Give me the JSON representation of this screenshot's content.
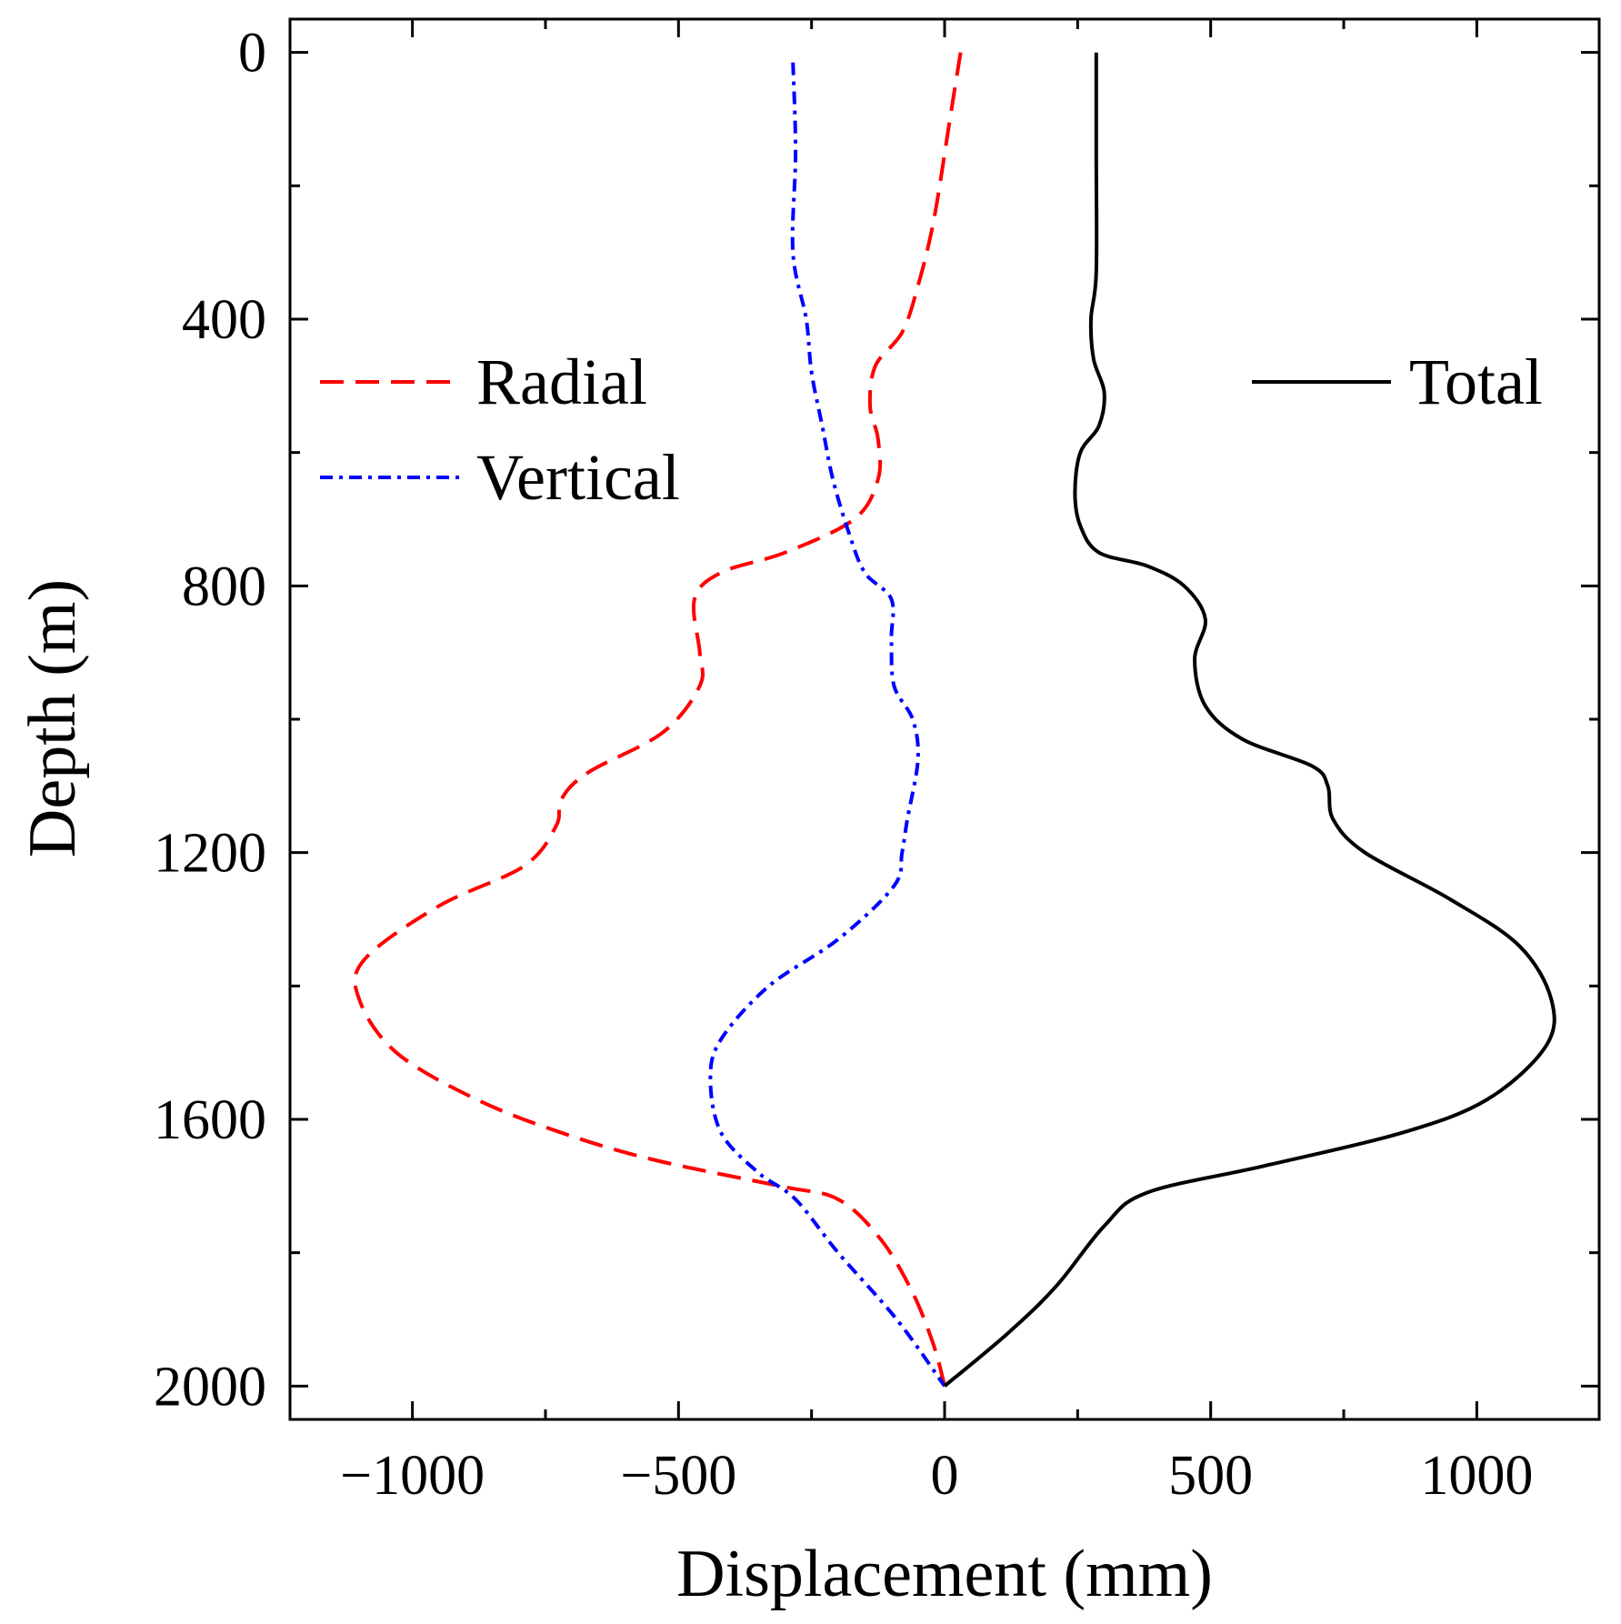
{
  "chart_data": {
    "type": "line",
    "title": "",
    "xlabel": "Displacement (mm)",
    "ylabel": "Depth (m)",
    "xlim": [
      -1230,
      1230
    ],
    "ylim": [
      2050,
      -50
    ],
    "y_inverted": true,
    "xticks": [
      -1000,
      -500,
      0,
      500,
      1000
    ],
    "xtick_labels": [
      "−1000",
      "−500",
      "0",
      "500",
      "1000"
    ],
    "yticks": [
      0,
      400,
      800,
      1200,
      1600,
      2000
    ],
    "ytick_labels": [
      "0",
      "400",
      "800",
      "1200",
      "1600",
      "2000"
    ],
    "grid": false,
    "legend": [
      {
        "name": "Radial",
        "placement": "upper-left"
      },
      {
        "name": "Vertical",
        "placement": "upper-left"
      },
      {
        "name": "Total",
        "placement": "upper-right"
      }
    ],
    "series": [
      {
        "name": "Radial",
        "color": "#ff0000",
        "dash": "dashed",
        "points": [
          [
            30,
            0
          ],
          [
            10,
            100
          ],
          [
            -20,
            250
          ],
          [
            -50,
            350
          ],
          [
            -80,
            420
          ],
          [
            -130,
            470
          ],
          [
            -140,
            530
          ],
          [
            -125,
            580
          ],
          [
            -125,
            640
          ],
          [
            -170,
            700
          ],
          [
            -300,
            750
          ],
          [
            -420,
            780
          ],
          [
            -470,
            820
          ],
          [
            -460,
            900
          ],
          [
            -460,
            950
          ],
          [
            -530,
            1020
          ],
          [
            -670,
            1080
          ],
          [
            -720,
            1120
          ],
          [
            -730,
            1160
          ],
          [
            -790,
            1220
          ],
          [
            -950,
            1280
          ],
          [
            -1090,
            1360
          ],
          [
            -1100,
            1420
          ],
          [
            -1030,
            1500
          ],
          [
            -880,
            1570
          ],
          [
            -720,
            1620
          ],
          [
            -550,
            1660
          ],
          [
            -310,
            1700
          ],
          [
            -200,
            1720
          ],
          [
            -120,
            1780
          ],
          [
            -60,
            1860
          ],
          [
            -20,
            1940
          ],
          [
            0,
            2000
          ]
        ]
      },
      {
        "name": "Vertical",
        "color": "#0000ff",
        "dash": "dash-dot",
        "points": [
          [
            -285,
            15
          ],
          [
            -280,
            150
          ],
          [
            -285,
            300
          ],
          [
            -260,
            400
          ],
          [
            -250,
            480
          ],
          [
            -230,
            560
          ],
          [
            -210,
            640
          ],
          [
            -180,
            720
          ],
          [
            -150,
            780
          ],
          [
            -100,
            820
          ],
          [
            -100,
            880
          ],
          [
            -95,
            950
          ],
          [
            -60,
            1000
          ],
          [
            -50,
            1060
          ],
          [
            -70,
            1150
          ],
          [
            -80,
            1200
          ],
          [
            -95,
            1250
          ],
          [
            -200,
            1330
          ],
          [
            -330,
            1400
          ],
          [
            -420,
            1480
          ],
          [
            -440,
            1540
          ],
          [
            -420,
            1620
          ],
          [
            -350,
            1680
          ],
          [
            -280,
            1720
          ],
          [
            -200,
            1800
          ],
          [
            -90,
            1900
          ],
          [
            0,
            2000
          ]
        ]
      },
      {
        "name": "Total",
        "color": "#000000",
        "dash": "solid",
        "points": [
          [
            285,
            0
          ],
          [
            285,
            150
          ],
          [
            285,
            330
          ],
          [
            275,
            400
          ],
          [
            280,
            460
          ],
          [
            300,
            510
          ],
          [
            290,
            560
          ],
          [
            255,
            600
          ],
          [
            245,
            660
          ],
          [
            255,
            710
          ],
          [
            290,
            750
          ],
          [
            380,
            770
          ],
          [
            450,
            800
          ],
          [
            490,
            850
          ],
          [
            470,
            910
          ],
          [
            490,
            980
          ],
          [
            560,
            1030
          ],
          [
            690,
            1070
          ],
          [
            720,
            1100
          ],
          [
            730,
            1150
          ],
          [
            790,
            1200
          ],
          [
            950,
            1270
          ],
          [
            1080,
            1340
          ],
          [
            1140,
            1420
          ],
          [
            1130,
            1490
          ],
          [
            1020,
            1570
          ],
          [
            860,
            1620
          ],
          [
            600,
            1670
          ],
          [
            380,
            1710
          ],
          [
            300,
            1760
          ],
          [
            210,
            1850
          ],
          [
            120,
            1920
          ],
          [
            0,
            2000
          ]
        ]
      }
    ]
  }
}
